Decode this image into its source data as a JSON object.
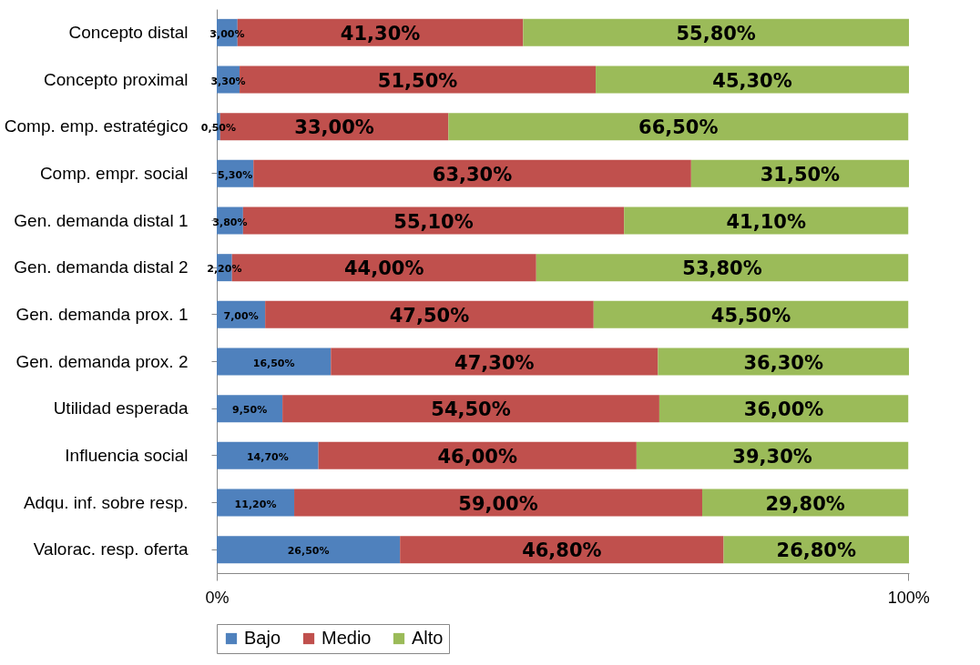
{
  "chart_data": {
    "type": "bar",
    "orientation": "horizontal",
    "stacked": true,
    "categories": [
      "Concepto distal",
      "Concepto proximal",
      "Comp. emp. estratégico",
      "Comp. empr. social",
      "Gen. demanda  distal 1",
      "Gen. demanda  distal 2",
      "Gen. demanda prox. 1",
      "Gen. demanda prox. 2",
      "Utilidad esperada",
      "Influencia social",
      "Adqu. inf. sobre resp.",
      "Valorac. resp. oferta"
    ],
    "series": [
      {
        "name": "Bajo",
        "color": "#4f81bd",
        "values": [
          3.0,
          3.3,
          0.5,
          5.3,
          3.8,
          2.2,
          7.0,
          16.5,
          9.5,
          14.7,
          11.2,
          26.5
        ],
        "value_labels": [
          "3,00%",
          "3,30%",
          "0,50%",
          "5,30%",
          "3,80%",
          "2,20%",
          "7,00%",
          "16,50%",
          "9,50%",
          "14,70%",
          "11,20%",
          "26,50%"
        ]
      },
      {
        "name": "Medio",
        "color": "#c0504d",
        "values": [
          41.3,
          51.5,
          33.0,
          63.3,
          55.1,
          44.0,
          47.5,
          47.3,
          54.5,
          46.0,
          59.0,
          46.8
        ],
        "value_labels": [
          "41,30%",
          "51,50%",
          "33,00%",
          "63,30%",
          "55,10%",
          "44,00%",
          "47,50%",
          "47,30%",
          "54,50%",
          "46,00%",
          "59,00%",
          "46,80%"
        ]
      },
      {
        "name": "Alto",
        "color": "#9bbb59",
        "values": [
          55.8,
          45.3,
          66.5,
          31.5,
          41.1,
          53.8,
          45.5,
          36.3,
          36.0,
          39.3,
          29.8,
          26.8
        ],
        "value_labels": [
          "55,80%",
          "45,30%",
          "66,50%",
          "31,50%",
          "41,10%",
          "53,80%",
          "45,50%",
          "36,30%",
          "36,00%",
          "39,30%",
          "29,80%",
          "26,80%"
        ]
      }
    ],
    "xlim": [
      0,
      100.1
    ],
    "xticks": [
      {
        "value": 0,
        "label": "0%"
      },
      {
        "value": 100,
        "label": "100%"
      }
    ],
    "grid": false,
    "legend": "bottom"
  }
}
